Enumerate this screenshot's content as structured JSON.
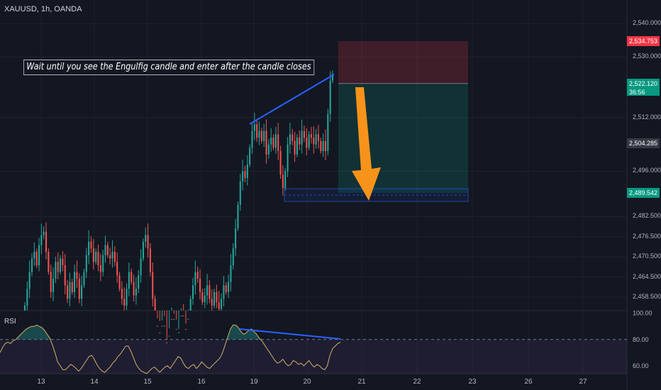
{
  "header": {
    "symbol_label": "XAUUSD, 1h, OANDA"
  },
  "annotation": {
    "text": "Wait until you see the Engulfig candle and enter after the candle closes"
  },
  "rsi_panel": {
    "label": "RSI"
  },
  "price_badges": [
    {
      "value": "2,534.753",
      "color": "#f23645"
    },
    {
      "value": "2,522.120",
      "sub": "36:56",
      "color": "#089981"
    },
    {
      "value": "2,504.285",
      "color": "#363a45"
    },
    {
      "value": "2,489.542",
      "color": "#089981"
    }
  ],
  "colors": {
    "up": "#26a69a",
    "down": "#ef5350",
    "trendline": "#2962ff",
    "arrow": "#f7931a",
    "rsi_line": "#d4b067",
    "stop_zone": "#f23645",
    "target_zone": "#089981"
  },
  "chart_data": [
    {
      "type": "candlestick",
      "title": "XAUUSD, 1h, OANDA",
      "x_ticks": [
        "13",
        "14",
        "15",
        "16",
        "19",
        "20",
        "21",
        "22",
        "23",
        "26",
        "27"
      ],
      "y_ticks": [
        2540.0,
        2530.0,
        2512.0,
        2496.0,
        2482.5,
        2476.5,
        2470.5,
        2464.5,
        2458.5
      ],
      "y_tick_labels": [
        "2,540.000",
        "2,530.000",
        "2,512.000",
        "2,496.000",
        "2,482.500",
        "2,476.500",
        "2,470.500",
        "2,464.500",
        "2,458.500"
      ],
      "ylim": [
        2454.5,
        2547.0
      ],
      "series": [
        {
          "name": "XAUUSD",
          "close": [
            2456,
            2461,
            2466,
            2470,
            2472,
            2468,
            2474,
            2477,
            2478,
            2472,
            2466,
            2460,
            2464,
            2469,
            2466,
            2470,
            2468,
            2462,
            2458,
            2463,
            2460,
            2466,
            2464,
            2458,
            2462,
            2466,
            2471,
            2475,
            2473,
            2469,
            2472,
            2468,
            2466,
            2471,
            2474,
            2471,
            2470,
            2472,
            2469,
            2465,
            2461,
            2458,
            2456,
            2461,
            2466,
            2463,
            2459,
            2461,
            2465,
            2470,
            2475,
            2477,
            2473,
            2466,
            2458,
            2450,
            2448,
            2447,
            2450,
            2445,
            2442,
            2447,
            2452,
            2449,
            2445,
            2448,
            2453,
            2449,
            2446,
            2452,
            2458,
            2462,
            2466,
            2464,
            2460,
            2457,
            2459,
            2462,
            2458,
            2456,
            2460,
            2457,
            2455,
            2458,
            2462,
            2460,
            2463,
            2468,
            2473,
            2479,
            2486,
            2493,
            2496,
            2494,
            2498,
            2503,
            2508,
            2510,
            2506,
            2508,
            2505,
            2508,
            2501,
            2504,
            2506,
            2503,
            2507,
            2502,
            2495,
            2491,
            2496,
            2504,
            2507,
            2505,
            2501,
            2506,
            2504,
            2508,
            2506,
            2503,
            2507,
            2506,
            2504,
            2507,
            2505,
            2502,
            2505,
            2502,
            2513,
            2523,
            2525
          ]
        }
      ],
      "annotations": [
        "Wait until you see the Engulfig candle and enter after the candle closes"
      ],
      "position_tool": {
        "entry": 2522.12,
        "stop": 2534.753,
        "target": 2489.542,
        "direction": "short"
      },
      "support_zone": [
        2487.0,
        2490.8
      ]
    },
    {
      "type": "line",
      "title": "RSI",
      "y_ticks": [
        100.0,
        80.0,
        60.0
      ],
      "y_tick_labels": [
        "100.00",
        "80.00",
        "60.00"
      ],
      "ylim": [
        54,
        102
      ],
      "overbought": 80,
      "series": [
        {
          "name": "RSI",
          "values": [
            70,
            74,
            77,
            78,
            77,
            79,
            80,
            82,
            84,
            86,
            88,
            89,
            90,
            90,
            91,
            90,
            89,
            87,
            84,
            81,
            76,
            70,
            63,
            60,
            57,
            57,
            59,
            61,
            60,
            58,
            56,
            58,
            61,
            64,
            67,
            68,
            65,
            61,
            58,
            56,
            55,
            57,
            59,
            62,
            64,
            67,
            69,
            72,
            75,
            75,
            71,
            66,
            61,
            58,
            56,
            55,
            54,
            56,
            58,
            59,
            57,
            55,
            57,
            59,
            60,
            58,
            61,
            64,
            67,
            66,
            62,
            59,
            58,
            60,
            61,
            58,
            60,
            63,
            61,
            59,
            58,
            60,
            62,
            64,
            66,
            70,
            76,
            82,
            88,
            91,
            91,
            89,
            86,
            84,
            85,
            87,
            88,
            86,
            84,
            81,
            79,
            76,
            73,
            70,
            67,
            64,
            62,
            63,
            65,
            62,
            60,
            61,
            64,
            63,
            61,
            62,
            60,
            62,
            64,
            61,
            59,
            61,
            60,
            58,
            57,
            60,
            68,
            73,
            75,
            77,
            78
          ]
        }
      ]
    }
  ]
}
